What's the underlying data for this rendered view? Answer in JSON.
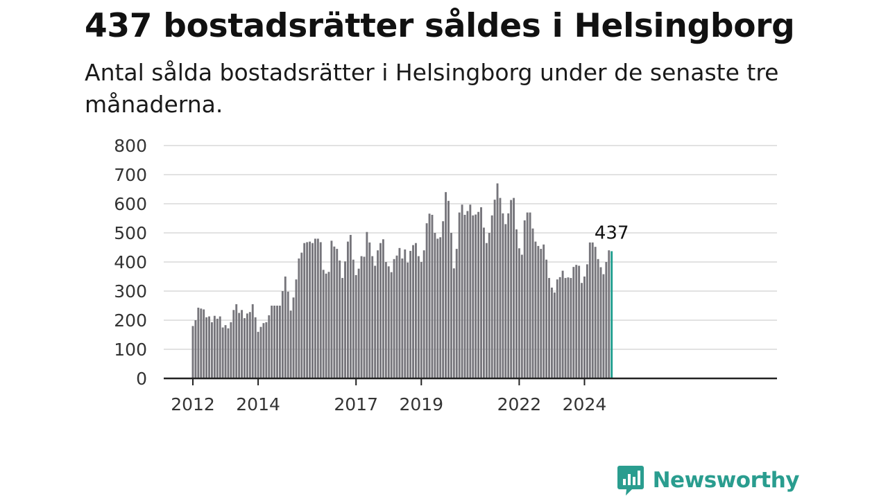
{
  "header": {
    "title": "437 bostadsrätter såldes i Helsingborg",
    "subtitle": "Antal sålda bostadsrätter i Helsingborg under de senaste tre månaderna."
  },
  "brand": {
    "name": "Newsworthy",
    "color": "#2a9d8f",
    "icon": "bar-chart-speech-bubble-icon"
  },
  "colors": {
    "bar": "#76757b",
    "highlight": "#1f9e8f",
    "grid": "#d9d9d9",
    "axis": "#222222"
  },
  "chart_data": {
    "type": "bar",
    "title": "437 bostadsrätter såldes i Helsingborg",
    "subtitle": "Antal sålda bostadsrätter i Helsingborg under de senaste tre månaderna.",
    "xlabel": "",
    "ylabel": "",
    "ylim": [
      0,
      800
    ],
    "y_ticks": [
      0,
      100,
      200,
      300,
      400,
      500,
      600,
      700,
      800
    ],
    "x_ticks": [
      "2012",
      "2014",
      "2017",
      "2019",
      "2022",
      "2024"
    ],
    "grid": true,
    "frequency": "monthly",
    "first_period": "2012-01",
    "annotation": {
      "label": "437",
      "value": 437
    },
    "highlight_last": true,
    "values": [
      180,
      200,
      243,
      240,
      237,
      210,
      213,
      193,
      215,
      205,
      213,
      175,
      183,
      172,
      193,
      235,
      255,
      225,
      235,
      207,
      223,
      228,
      255,
      210,
      160,
      177,
      190,
      193,
      217,
      250,
      250,
      250,
      250,
      300,
      350,
      298,
      233,
      278,
      340,
      412,
      432,
      465,
      468,
      470,
      465,
      480,
      480,
      468,
      373,
      360,
      366,
      473,
      453,
      445,
      405,
      345,
      402,
      470,
      493,
      408,
      355,
      377,
      420,
      418,
      503,
      467,
      420,
      387,
      440,
      465,
      478,
      400,
      385,
      365,
      410,
      422,
      448,
      412,
      443,
      398,
      438,
      458,
      465,
      420,
      400,
      440,
      533,
      566,
      562,
      500,
      480,
      485,
      540,
      640,
      610,
      500,
      378,
      445,
      570,
      597,
      562,
      575,
      597,
      560,
      563,
      572,
      588,
      518,
      465,
      500,
      560,
      614,
      670,
      620,
      567,
      530,
      567,
      613,
      620,
      512,
      447,
      425,
      543,
      570,
      570,
      515,
      470,
      455,
      445,
      460,
      408,
      345,
      312,
      295,
      340,
      348,
      370,
      345,
      347,
      345,
      383,
      390,
      387,
      328,
      350,
      392,
      467,
      467,
      452,
      410,
      382,
      358,
      400,
      440,
      437
    ]
  }
}
